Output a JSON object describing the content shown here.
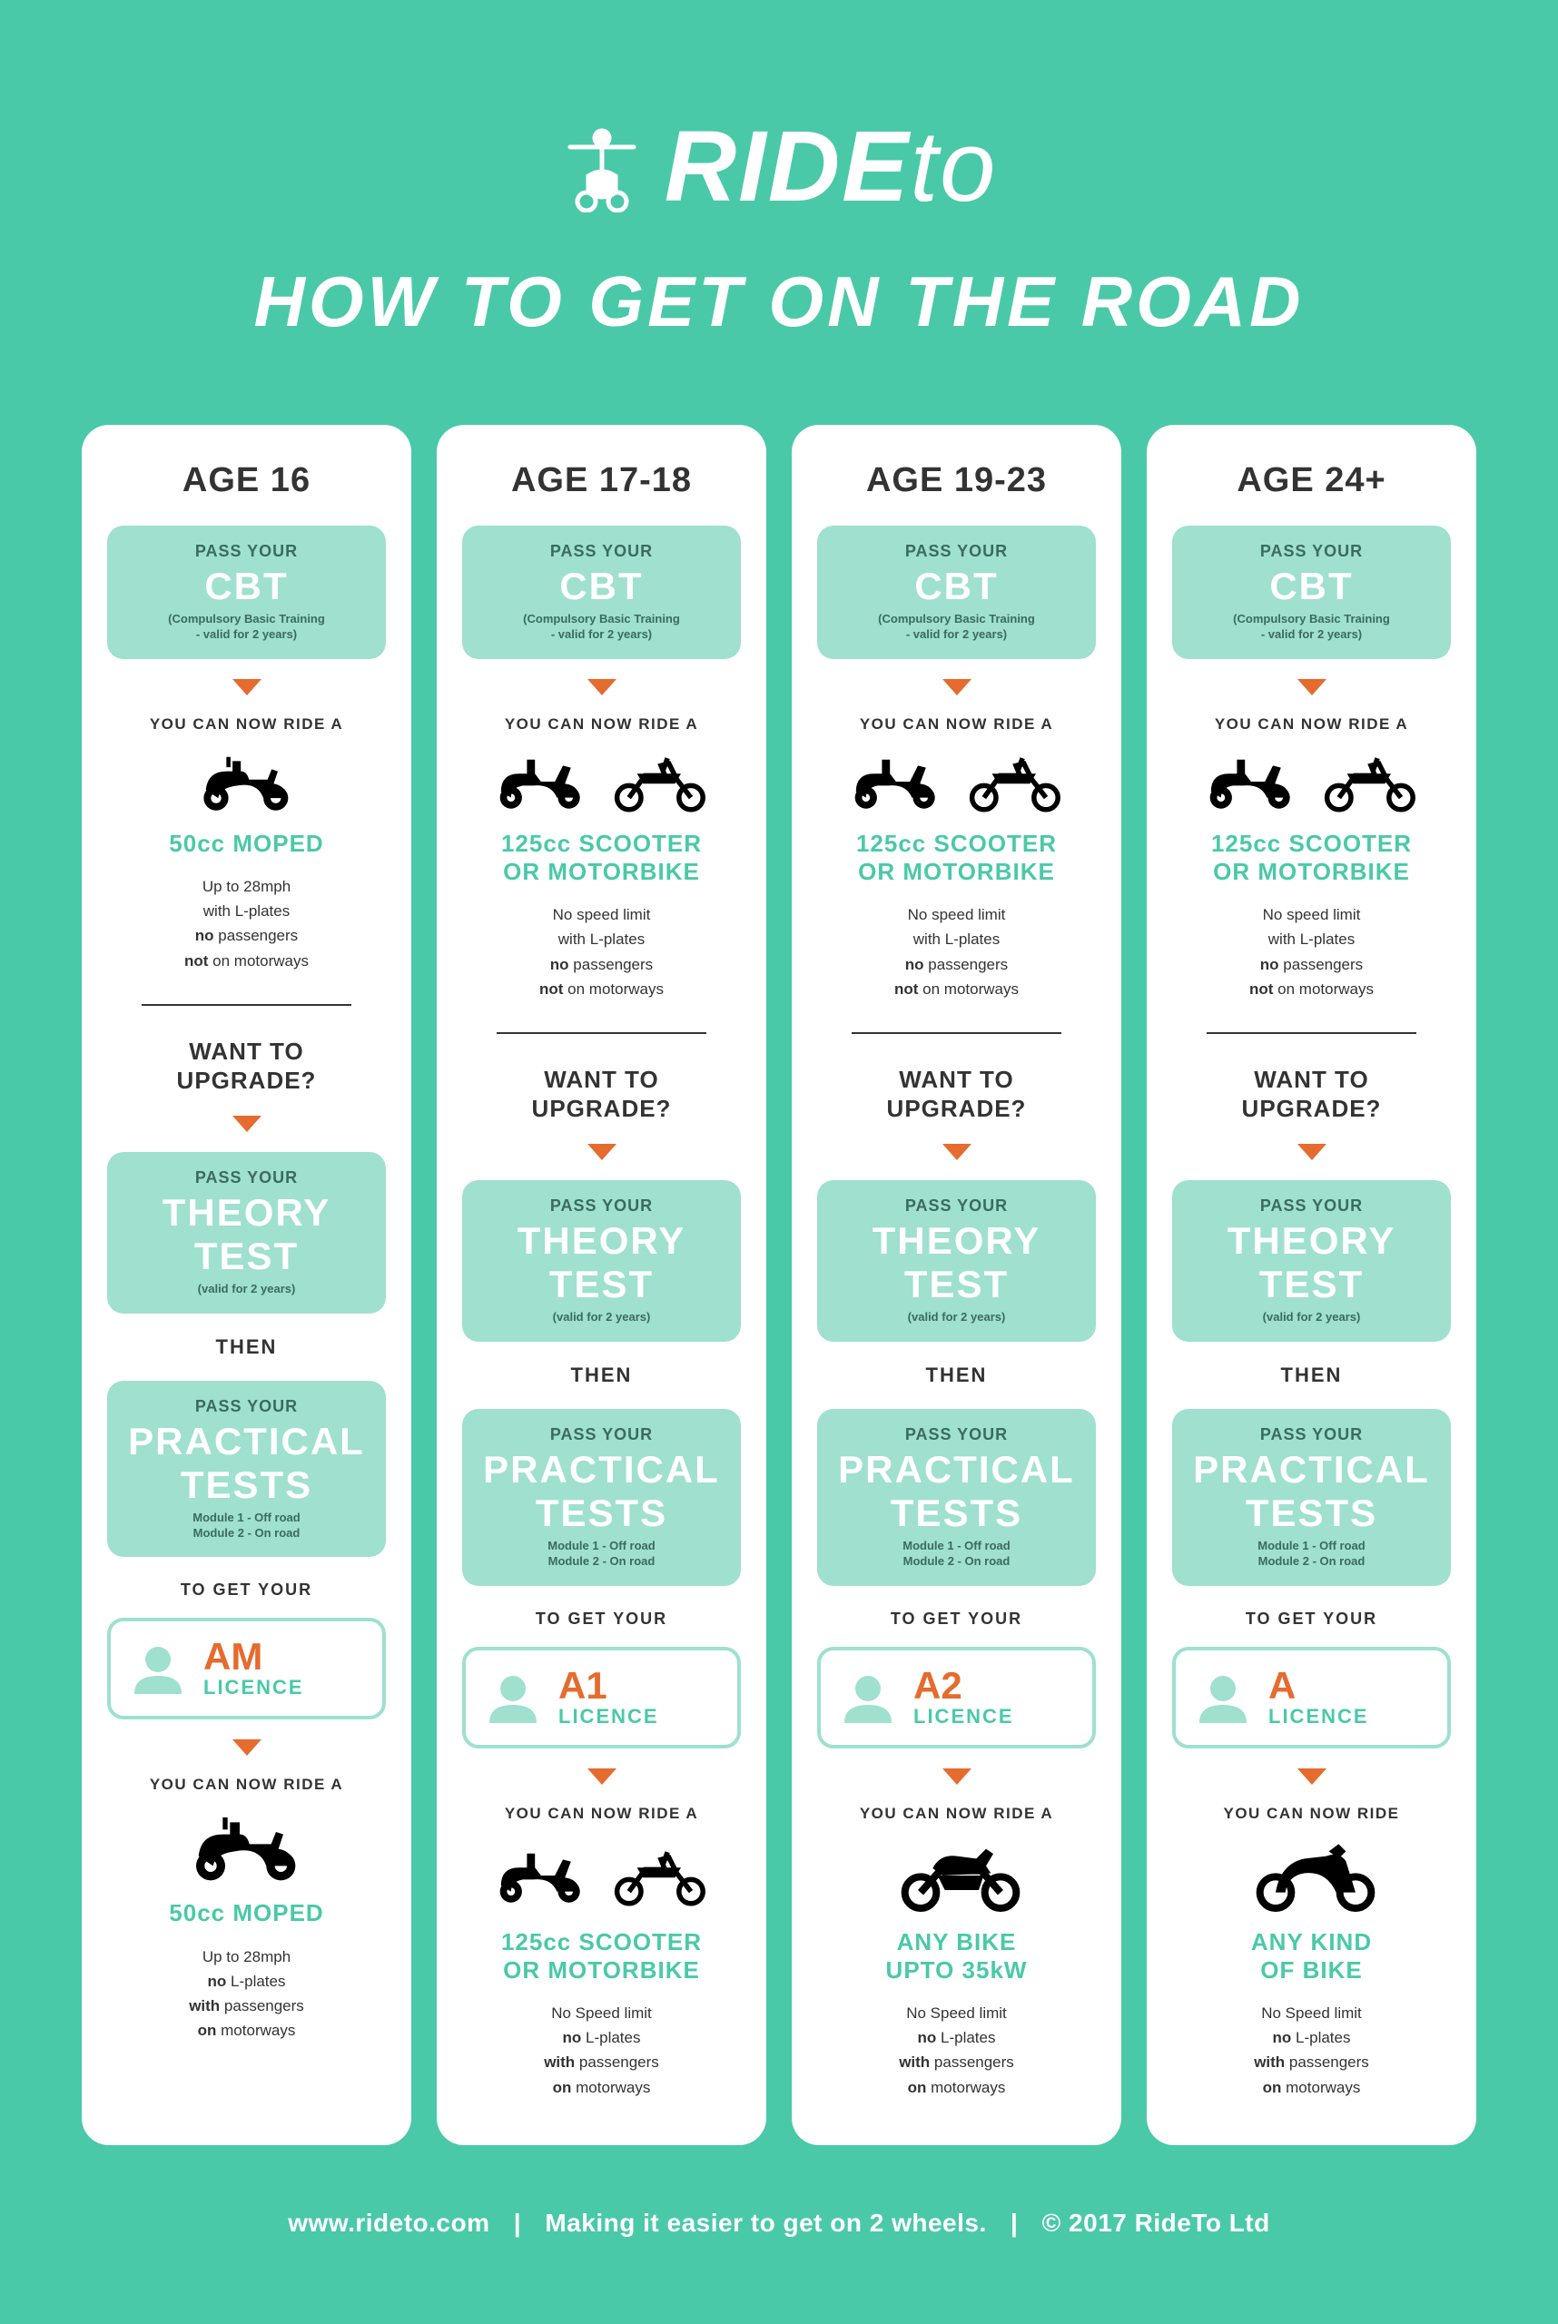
{
  "brand": {
    "part1": "RIDE",
    "part2": "to"
  },
  "subtitle": "HOW TO GET ON THE ROAD",
  "labels": {
    "pass_your": "PASS YOUR",
    "you_can_now_ride_a": "YOU CAN NOW RIDE A",
    "you_can_now_ride": "YOU CAN NOW RIDE",
    "want_to_upgrade": "WANT TO\nUPGRADE?",
    "then": "THEN",
    "to_get_your": "TO GET YOUR",
    "licence": "LICENCE"
  },
  "boxes": {
    "cbt": {
      "title": "CBT",
      "sub": "(Compulsory Basic Training\n- valid for 2 years)"
    },
    "theory": {
      "title": "THEORY\nTEST",
      "sub": "(valid for 2 years)"
    },
    "practical": {
      "title": "PRACTICAL\nTESTS",
      "sub": "Module 1 - Off road\nModule 2 - On road"
    }
  },
  "columns": [
    {
      "age": "AGE 16",
      "vehicle1": "50cc MOPED",
      "icons1": [
        "moped"
      ],
      "restrict1": "Up to 28mph\nwith L-plates\n<b>no</b> passengers\n<b>not</b> on motorways",
      "licence": "AM",
      "vehicle2": "50cc MOPED",
      "icons2": [
        "moped"
      ],
      "ride2_label": "a",
      "restrict2": "Up to 28mph\n<b>no</b> L-plates\n<b>with</b> passengers\n<b>on</b> motorways"
    },
    {
      "age": "AGE 17-18",
      "vehicle1": "125cc SCOOTER\nOR MOTORBIKE",
      "icons1": [
        "scooter",
        "dirtbike"
      ],
      "restrict1": "No speed limit\nwith L-plates\n<b>no</b> passengers\n<b>not</b> on motorways",
      "licence": "A1",
      "vehicle2": "125cc SCOOTER\nOR MOTORBIKE",
      "icons2": [
        "scooter",
        "dirtbike"
      ],
      "ride2_label": "a",
      "restrict2": "No Speed limit\n<b>no</b> L-plates\n<b>with</b> passengers\n<b>on</b> motorways"
    },
    {
      "age": "AGE 19-23",
      "vehicle1": "125cc SCOOTER\nOR MOTORBIKE",
      "icons1": [
        "scooter",
        "dirtbike"
      ],
      "restrict1": "No speed limit\nwith L-plates\n<b>no</b> passengers\n<b>not</b> on motorways",
      "licence": "A2",
      "vehicle2": "ANY BIKE\nUPTO 35kW",
      "icons2": [
        "cruiser"
      ],
      "ride2_label": "a",
      "restrict2": "No Speed limit\n<b>no</b> L-plates\n<b>with</b> passengers\n<b>on</b> motorways"
    },
    {
      "age": "AGE 24+",
      "vehicle1": "125cc SCOOTER\nOR MOTORBIKE",
      "icons1": [
        "scooter",
        "dirtbike"
      ],
      "restrict1": "No speed limit\nwith L-plates\n<b>no</b> passengers\n<b>not</b> on motorways",
      "licence": "A",
      "vehicle2": "ANY KIND\nOF BIKE",
      "icons2": [
        "sportbike"
      ],
      "ride2_label": "",
      "restrict2": "No Speed limit\n<b>no</b> L-plates\n<b>with</b> passengers\n<b>on</b> motorways"
    }
  ],
  "footer": {
    "url": "www.rideto.com",
    "tagline": "Making it easier to get on 2 wheels.",
    "copyright": "© 2017 RideTo Ltd"
  },
  "colors": {
    "bg": "#4ac9a8",
    "pill": "#9fe0cf",
    "accent": "#e56b2e",
    "teal_text": "#4ac9a8"
  }
}
